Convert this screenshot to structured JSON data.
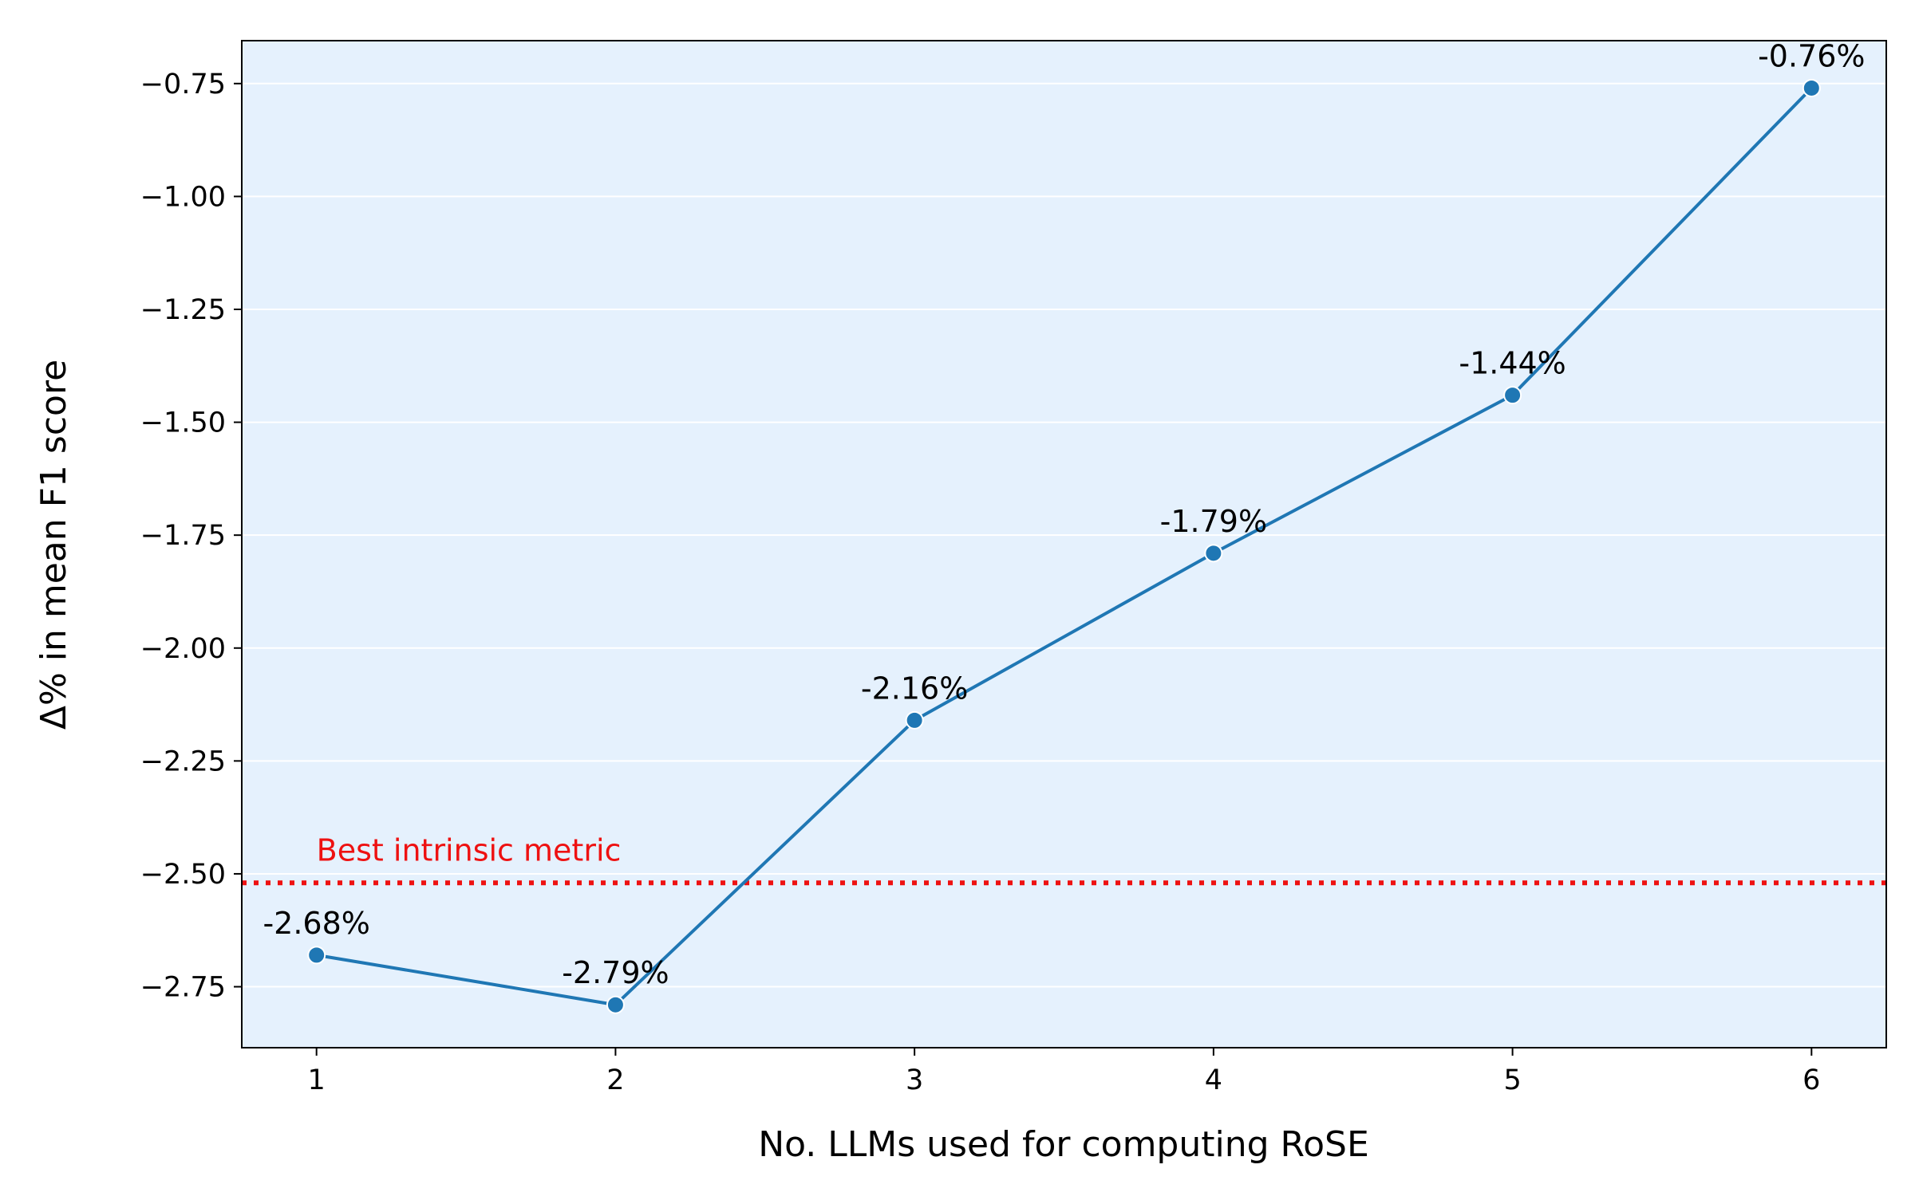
{
  "chart_data": {
    "type": "line",
    "xlabel": "No. LLMs used for computing RoSE",
    "ylabel": "Δ% in mean F1 score",
    "x": [
      1,
      2,
      3,
      4,
      5,
      6
    ],
    "series": [
      {
        "values": [
          -2.68,
          -2.79,
          -2.16,
          -1.79,
          -1.44,
          -0.76
        ],
        "labels": [
          "-2.68%",
          "-2.79%",
          "-2.16%",
          "-1.79%",
          "-1.44%",
          "-0.76%"
        ],
        "color": "#1f77b4"
      }
    ],
    "xticks": [
      1,
      2,
      3,
      4,
      5,
      6
    ],
    "xtick_labels": [
      "1",
      "2",
      "3",
      "4",
      "5",
      "6"
    ],
    "yticks": [
      -2.75,
      -2.5,
      -2.25,
      -2.0,
      -1.75,
      -1.5,
      -1.25,
      -1.0,
      -0.75
    ],
    "ytick_labels": [
      "−2.75",
      "−2.50",
      "−2.25",
      "−2.00",
      "−1.75",
      "−1.50",
      "−1.25",
      "−1.00",
      "−0.75"
    ],
    "xlim": [
      0.75,
      6.25
    ],
    "ylim": [
      -2.885,
      -0.655
    ],
    "grid": "horizontal",
    "reference_line": {
      "value": -2.52,
      "label": "Best intrinsic metric",
      "color": "#ee1111",
      "style": "dotted"
    },
    "background_color": "#e5f1fd"
  }
}
